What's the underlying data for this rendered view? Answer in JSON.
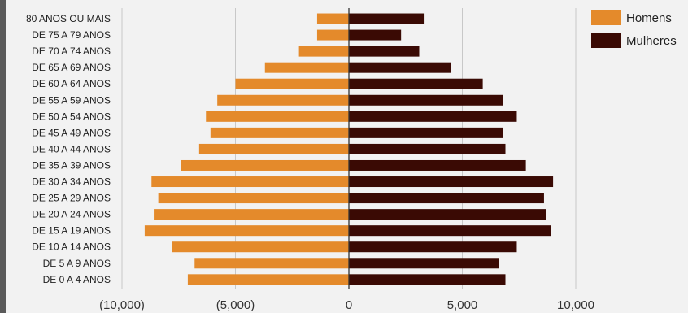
{
  "chart_data": {
    "type": "bar",
    "orientation": "horizontal",
    "layout": "population-pyramid",
    "categories": [
      "80 ANOS OU MAIS",
      "DE 75 A 79 ANOS",
      "DE 70 A 74 ANOS",
      "DE 65 A 69 ANOS",
      "DE 60 A 64 ANOS",
      "DE 55 A 59 ANOS",
      "DE 50 A 54 ANOS",
      "DE 45 A 49 ANOS",
      "DE 40 A 44 ANOS",
      "DE 35 A 39 ANOS",
      "DE 30 A 34 ANOS",
      "DE 25 A 29 ANOS",
      "DE 20 A 24 ANOS",
      "DE 15 A 19 ANOS",
      "DE 10 A 14 ANOS",
      "DE 5 A 9 ANOS",
      "DE 0 A 4 ANOS"
    ],
    "series": [
      {
        "name": "Homens",
        "color": "#e48a2b",
        "values": [
          -1400,
          -1400,
          -2200,
          -3700,
          -5000,
          -5800,
          -6300,
          -6100,
          -6600,
          -7400,
          -8700,
          -8400,
          -8600,
          -9000,
          -7800,
          -6800,
          -7100
        ]
      },
      {
        "name": "Mulheres",
        "color": "#3a0a04",
        "values": [
          3300,
          2300,
          3100,
          4500,
          5900,
          6800,
          7400,
          6800,
          6900,
          7800,
          9000,
          8600,
          8700,
          8900,
          7400,
          6600,
          6900
        ]
      }
    ],
    "x_ticks": [
      -10000,
      -5000,
      0,
      5000,
      10000
    ],
    "x_tick_labels": [
      "(10,000)",
      "(5,000)",
      "0",
      "5,000",
      "10,000"
    ],
    "xlim": [
      -10000,
      10000
    ],
    "grid": true,
    "legend_position": "top-right"
  }
}
